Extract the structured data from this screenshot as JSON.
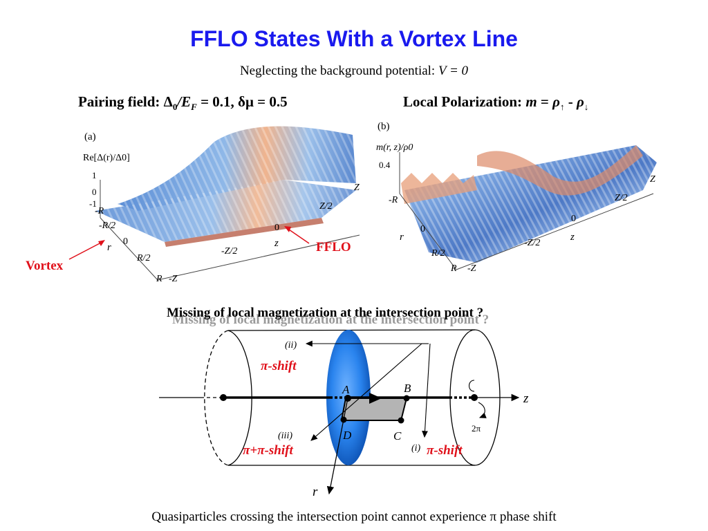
{
  "slide": {
    "title": "FFLO States With a Vortex Line",
    "subtitle_prefix": "Neglecting the background potential: ",
    "subtitle_eq": "V = 0"
  },
  "left_panel": {
    "header": {
      "lead": "Pairing field: ",
      "delta": "Δ",
      "sub0": "0",
      "slash_e": "/E",
      "subF": "F",
      "rest": " = 0.1, δμ = 0.5"
    },
    "tag": "(a)",
    "zlabel": "Re[Δ(r)/Δ0]",
    "z_ticks": [
      "1",
      "0",
      "-1"
    ],
    "r_ticks": [
      "-R",
      "-R/2",
      "0",
      "R/2",
      "R"
    ],
    "r_label": "r",
    "z_axis_ticks": [
      "-Z",
      "-Z/2",
      "0",
      "Z/2",
      "Z"
    ],
    "z_axis_label": "z",
    "annot_vortex": "Vortex",
    "annot_fflo": "FFLO"
  },
  "right_panel": {
    "header": {
      "lead": "Local Polarization: ",
      "eq_m": "m",
      "eq_eq": " = ",
      "rho1": "ρ",
      "up": "↑",
      "minus": " - ",
      "rho2": "ρ",
      "down": "↓"
    },
    "tag": "(b)",
    "zlabel": "m(r, z)/ρ0",
    "z_tick": "0.4",
    "r_ticks": [
      "-R",
      "0",
      "r",
      "R/2",
      "R"
    ],
    "z_axis_ticks": [
      "-Z",
      "-Z/2",
      "0",
      "Z/2",
      "Z"
    ],
    "z_axis_label": "z"
  },
  "bottom": {
    "question": "Missing of local magnetization at the intersection point ?",
    "label_shift_top": "π-shift",
    "label_shift_left": "π+π-shift",
    "label_shift_right": "π-shift",
    "path_ii": "(ii)",
    "path_iii": "(iii)",
    "path_i": "(i)",
    "pt_a": "A",
    "pt_b": "B",
    "pt_c": "C",
    "pt_d": "D",
    "axis_z": "z",
    "axis_r": "r",
    "two_pi": "2π",
    "footer": "Quasiparticles crossing the intersection point cannot experience π phase shift"
  },
  "colors": {
    "title": "#1a1aee",
    "annotation_red": "#e0101a",
    "surface_blue": "#6f9fd8",
    "surface_orange": "#e99a6a",
    "disk_blue": "#1c6fd6"
  }
}
